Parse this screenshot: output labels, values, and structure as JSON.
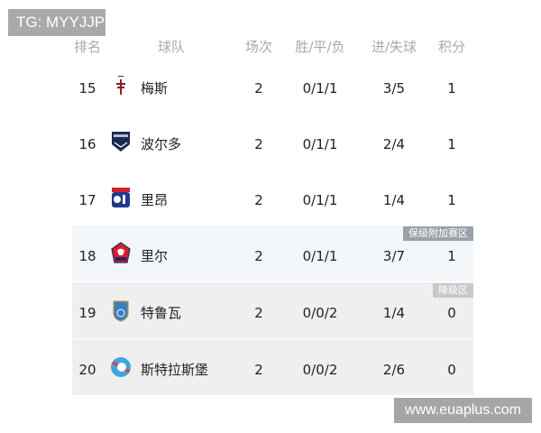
{
  "watermark_top": "TG: MYYJJPP",
  "watermark_bottom": "www.euaplus.com",
  "headers": {
    "rank": "排名",
    "team": "球队",
    "played": "场次",
    "wdl": "胜/平/负",
    "goals": "进/失球",
    "points": "积分"
  },
  "rows": [
    {
      "rank": "15",
      "team": "梅斯",
      "logo": "metz-logo",
      "played": "2",
      "wdl": "0/1/1",
      "goals": "3/5",
      "points": "1",
      "bg": "#ffffff"
    },
    {
      "rank": "16",
      "team": "波尔多",
      "logo": "bordeaux-logo",
      "played": "2",
      "wdl": "0/1/1",
      "goals": "2/4",
      "points": "1",
      "bg": "#ffffff"
    },
    {
      "rank": "17",
      "team": "里昂",
      "logo": "lyon-logo",
      "played": "2",
      "wdl": "0/1/1",
      "goals": "1/4",
      "points": "1",
      "bg": "#ffffff"
    },
    {
      "rank": "18",
      "team": "里尔",
      "logo": "lille-logo",
      "played": "2",
      "wdl": "0/1/1",
      "goals": "3/7",
      "points": "1",
      "bg": "#f3f6f9",
      "badge": "保级附加赛区",
      "badge_color": "#9ba1a9"
    },
    {
      "rank": "19",
      "team": "特鲁瓦",
      "logo": "troyes-logo",
      "played": "2",
      "wdl": "0/0/2",
      "goals": "1/4",
      "points": "0",
      "bg": "#efefef",
      "badge": "降级区",
      "badge_color": "#c9c9c9"
    },
    {
      "rank": "20",
      "team": "斯特拉斯堡",
      "logo": "strasbourg-logo",
      "played": "2",
      "wdl": "0/0/2",
      "goals": "2/6",
      "points": "0",
      "bg": "#efefef"
    }
  ]
}
